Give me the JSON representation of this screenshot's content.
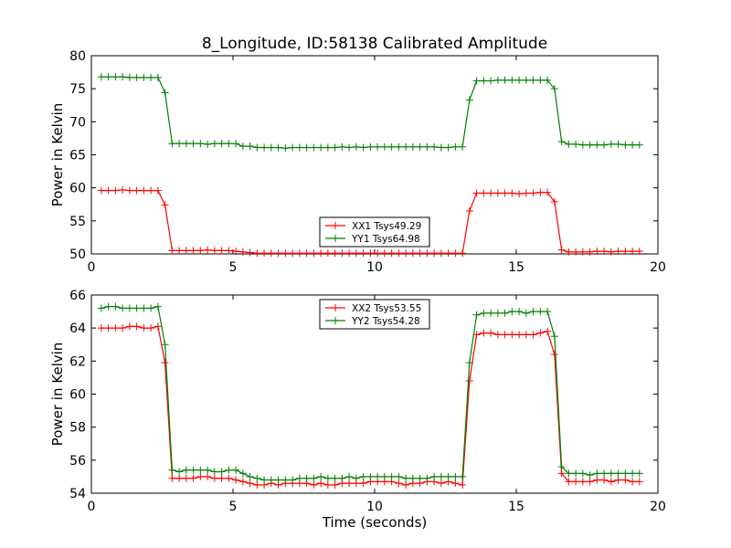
{
  "figure": {
    "title": "8_Longitude, ID:58138 Calibrated Amplitude",
    "xlabel": "Time (seconds)"
  },
  "colors": {
    "red": "#ff0000",
    "green": "#008000"
  },
  "chart_data": [
    {
      "type": "line",
      "title": "8_Longitude, ID:58138 Calibrated Amplitude",
      "xlabel": "",
      "ylabel": "Power in Kelvin",
      "xlim": [
        0,
        20
      ],
      "ylim": [
        50,
        80
      ],
      "xticks": [
        "0",
        "5",
        "10",
        "15",
        "20"
      ],
      "yticks": [
        "50",
        "55",
        "60",
        "65",
        "70",
        "75",
        "80"
      ],
      "grid": false,
      "legend_position": "lower-center",
      "series": [
        {
          "name": "XX1 Tsys49.29",
          "color": "#ff0000",
          "x": [
            0.35,
            0.6,
            0.85,
            1.1,
            1.35,
            1.6,
            1.85,
            2.1,
            2.35,
            2.6,
            2.85,
            3.1,
            3.35,
            3.6,
            3.85,
            4.1,
            4.35,
            4.6,
            4.85,
            5.1,
            5.35,
            5.6,
            5.85,
            6.1,
            6.35,
            6.6,
            6.85,
            7.1,
            7.35,
            7.6,
            7.85,
            8.1,
            8.35,
            8.6,
            8.85,
            9.1,
            9.35,
            9.6,
            9.85,
            10.1,
            10.35,
            10.6,
            10.85,
            11.1,
            11.35,
            11.6,
            11.85,
            12.1,
            12.35,
            12.6,
            12.85,
            13.1,
            13.35,
            13.6,
            13.85,
            14.1,
            14.35,
            14.6,
            14.85,
            15.1,
            15.35,
            15.6,
            15.85,
            16.1,
            16.35,
            16.6,
            16.85,
            17.1,
            17.35,
            17.6,
            17.85,
            18.1,
            18.35,
            18.6,
            18.85,
            19.1,
            19.35
          ],
          "y": [
            59.6,
            59.6,
            59.6,
            59.7,
            59.6,
            59.6,
            59.6,
            59.6,
            59.6,
            57.4,
            50.5,
            50.5,
            50.5,
            50.5,
            50.5,
            50.6,
            50.5,
            50.5,
            50.5,
            50.4,
            50.3,
            50.2,
            50.1,
            50.1,
            50.1,
            50.1,
            50.1,
            50.1,
            50.1,
            50.1,
            50.1,
            50.1,
            50.1,
            50.1,
            50.1,
            50.1,
            50.1,
            50.1,
            50.1,
            50.1,
            50.1,
            50.1,
            50.1,
            50.1,
            50.1,
            50.1,
            50.1,
            50.1,
            50.1,
            50.1,
            50.1,
            50.1,
            56.5,
            59.2,
            59.2,
            59.2,
            59.2,
            59.2,
            59.2,
            59.1,
            59.2,
            59.2,
            59.3,
            59.3,
            57.9,
            50.6,
            50.3,
            50.3,
            50.3,
            50.3,
            50.4,
            50.4,
            50.3,
            50.4,
            50.4,
            50.4,
            50.4
          ]
        },
        {
          "name": "YY1 Tsys64.98",
          "color": "#008000",
          "x": [
            0.35,
            0.6,
            0.85,
            1.1,
            1.35,
            1.6,
            1.85,
            2.1,
            2.35,
            2.6,
            2.85,
            3.1,
            3.35,
            3.6,
            3.85,
            4.1,
            4.35,
            4.6,
            4.85,
            5.1,
            5.35,
            5.6,
            5.85,
            6.1,
            6.35,
            6.6,
            6.85,
            7.1,
            7.35,
            7.6,
            7.85,
            8.1,
            8.35,
            8.6,
            8.85,
            9.1,
            9.35,
            9.6,
            9.85,
            10.1,
            10.35,
            10.6,
            10.85,
            11.1,
            11.35,
            11.6,
            11.85,
            12.1,
            12.35,
            12.6,
            12.85,
            13.1,
            13.35,
            13.6,
            13.85,
            14.1,
            14.35,
            14.6,
            14.85,
            15.1,
            15.35,
            15.6,
            15.85,
            16.1,
            16.35,
            16.6,
            16.85,
            17.1,
            17.35,
            17.6,
            17.85,
            18.1,
            18.35,
            18.6,
            18.85,
            19.1,
            19.35
          ],
          "y": [
            76.8,
            76.8,
            76.8,
            76.8,
            76.7,
            76.7,
            76.7,
            76.7,
            76.7,
            74.4,
            66.7,
            66.7,
            66.7,
            66.7,
            66.7,
            66.6,
            66.7,
            66.7,
            66.7,
            66.7,
            66.3,
            66.3,
            66.1,
            66.1,
            66.1,
            66.1,
            66.0,
            66.1,
            66.1,
            66.1,
            66.1,
            66.1,
            66.1,
            66.1,
            66.2,
            66.1,
            66.2,
            66.1,
            66.2,
            66.2,
            66.2,
            66.2,
            66.2,
            66.2,
            66.2,
            66.2,
            66.2,
            66.2,
            66.1,
            66.1,
            66.2,
            66.2,
            73.3,
            76.2,
            76.2,
            76.2,
            76.3,
            76.3,
            76.3,
            76.3,
            76.3,
            76.3,
            76.3,
            76.3,
            75.0,
            67.0,
            66.6,
            66.6,
            66.5,
            66.5,
            66.5,
            66.5,
            66.6,
            66.6,
            66.5,
            66.5,
            66.5
          ]
        }
      ]
    },
    {
      "type": "line",
      "title": "",
      "xlabel": "Time (seconds)",
      "ylabel": "Power in Kelvin",
      "xlim": [
        0,
        20
      ],
      "ylim": [
        54,
        66
      ],
      "xticks": [
        "0",
        "5",
        "10",
        "15",
        "20"
      ],
      "yticks": [
        "54",
        "56",
        "58",
        "60",
        "62",
        "64",
        "66"
      ],
      "grid": false,
      "legend_position": "upper-center",
      "series": [
        {
          "name": "XX2 Tsys53.55",
          "color": "#ff0000",
          "x": [
            0.35,
            0.6,
            0.85,
            1.1,
            1.35,
            1.6,
            1.85,
            2.1,
            2.35,
            2.6,
            2.85,
            3.1,
            3.35,
            3.6,
            3.85,
            4.1,
            4.35,
            4.6,
            4.85,
            5.1,
            5.35,
            5.6,
            5.85,
            6.1,
            6.35,
            6.6,
            6.85,
            7.1,
            7.35,
            7.6,
            7.85,
            8.1,
            8.35,
            8.6,
            8.85,
            9.1,
            9.35,
            9.6,
            9.85,
            10.1,
            10.35,
            10.6,
            10.85,
            11.1,
            11.35,
            11.6,
            11.85,
            12.1,
            12.35,
            12.6,
            12.85,
            13.1,
            13.35,
            13.6,
            13.85,
            14.1,
            14.35,
            14.6,
            14.85,
            15.1,
            15.35,
            15.6,
            15.85,
            16.1,
            16.35,
            16.6,
            16.85,
            17.1,
            17.35,
            17.6,
            17.85,
            18.1,
            18.35,
            18.6,
            18.85,
            19.1,
            19.35
          ],
          "y": [
            64.0,
            64.0,
            64.0,
            64.0,
            64.1,
            64.1,
            64.0,
            64.0,
            64.1,
            61.9,
            54.9,
            54.9,
            54.9,
            54.9,
            55.0,
            55.0,
            54.9,
            54.9,
            54.9,
            54.8,
            54.7,
            54.6,
            54.5,
            54.5,
            54.6,
            54.5,
            54.6,
            54.6,
            54.6,
            54.6,
            54.5,
            54.6,
            54.5,
            54.5,
            54.6,
            54.6,
            54.6,
            54.6,
            54.7,
            54.7,
            54.7,
            54.7,
            54.6,
            54.5,
            54.6,
            54.6,
            54.7,
            54.7,
            54.6,
            54.7,
            54.6,
            54.5,
            60.8,
            63.6,
            63.7,
            63.7,
            63.6,
            63.6,
            63.6,
            63.6,
            63.6,
            63.6,
            63.7,
            63.8,
            62.4,
            55.2,
            54.7,
            54.7,
            54.7,
            54.7,
            54.8,
            54.8,
            54.7,
            54.8,
            54.8,
            54.7,
            54.7
          ]
        },
        {
          "name": "YY2 Tsys54.28",
          "color": "#008000",
          "x": [
            0.35,
            0.6,
            0.85,
            1.1,
            1.35,
            1.6,
            1.85,
            2.1,
            2.35,
            2.6,
            2.85,
            3.1,
            3.35,
            3.6,
            3.85,
            4.1,
            4.35,
            4.6,
            4.85,
            5.1,
            5.35,
            5.6,
            5.85,
            6.1,
            6.35,
            6.6,
            6.85,
            7.1,
            7.35,
            7.6,
            7.85,
            8.1,
            8.35,
            8.6,
            8.85,
            9.1,
            9.35,
            9.6,
            9.85,
            10.1,
            10.35,
            10.6,
            10.85,
            11.1,
            11.35,
            11.6,
            11.85,
            12.1,
            12.35,
            12.6,
            12.85,
            13.1,
            13.35,
            13.6,
            13.85,
            14.1,
            14.35,
            14.6,
            14.85,
            15.1,
            15.35,
            15.6,
            15.85,
            16.1,
            16.35,
            16.6,
            16.85,
            17.1,
            17.35,
            17.6,
            17.85,
            18.1,
            18.35,
            18.6,
            18.85,
            19.1,
            19.35
          ],
          "y": [
            65.2,
            65.3,
            65.3,
            65.2,
            65.2,
            65.2,
            65.2,
            65.2,
            65.3,
            63.0,
            55.4,
            55.3,
            55.4,
            55.4,
            55.4,
            55.4,
            55.3,
            55.3,
            55.4,
            55.4,
            55.2,
            55.0,
            54.9,
            54.8,
            54.8,
            54.8,
            54.8,
            54.8,
            54.9,
            54.9,
            54.9,
            55.0,
            54.9,
            54.9,
            54.9,
            55.0,
            54.9,
            55.0,
            55.0,
            55.0,
            55.0,
            55.0,
            55.0,
            54.9,
            54.9,
            54.9,
            54.9,
            55.0,
            55.0,
            55.0,
            55.0,
            55.0,
            61.9,
            64.8,
            64.9,
            64.9,
            64.9,
            64.9,
            65.0,
            65.0,
            64.9,
            65.0,
            65.0,
            65.0,
            63.5,
            55.6,
            55.2,
            55.2,
            55.2,
            55.1,
            55.2,
            55.2,
            55.2,
            55.2,
            55.2,
            55.2,
            55.2
          ]
        }
      ]
    }
  ]
}
